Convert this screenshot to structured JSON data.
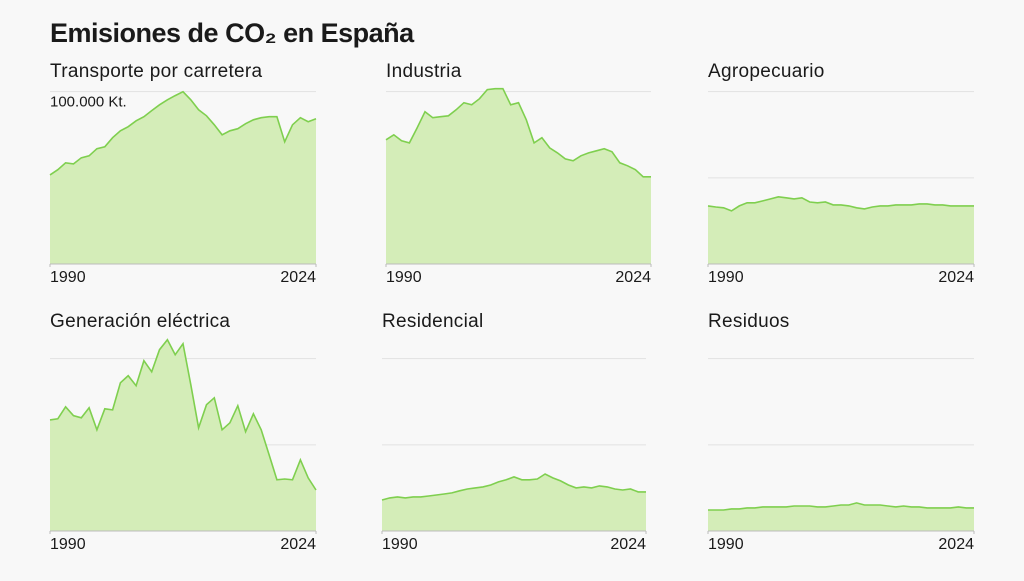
{
  "title": "Emisiones de CO₂ en España",
  "chart_data": [
    {
      "type": "area",
      "title": "Transporte por carretera",
      "color": "#7fcf4f",
      "fill": "#d4edb8",
      "x": [
        1990,
        1991,
        1992,
        1993,
        1994,
        1995,
        1996,
        1997,
        1998,
        1999,
        2000,
        2001,
        2002,
        2003,
        2004,
        2005,
        2006,
        2007,
        2008,
        2009,
        2010,
        2011,
        2012,
        2013,
        2014,
        2015,
        2016,
        2017,
        2018,
        2019,
        2020,
        2021,
        2022,
        2023,
        2024
      ],
      "values": [
        51700,
        54700,
        58700,
        58100,
        61600,
        62800,
        66900,
        68000,
        73300,
        77300,
        79700,
        83100,
        85500,
        89000,
        92400,
        95300,
        97700,
        100000,
        95300,
        89500,
        86000,
        80800,
        75000,
        77300,
        78500,
        81400,
        83700,
        84900,
        85500,
        85500,
        70900,
        80800,
        84900,
        82600,
        84300
      ],
      "xlim": [
        1990,
        2024
      ],
      "xticks": [
        1990,
        2024
      ],
      "ylim": [
        0,
        112000
      ],
      "ygrid": [
        50000,
        100000
      ],
      "yticks": [
        {
          "value": 100000,
          "label": "100.000 Kt."
        }
      ]
    },
    {
      "type": "area",
      "title": "Industria",
      "color": "#7fcf4f",
      "fill": "#d4edb8",
      "x": [
        1990,
        1991,
        1992,
        1993,
        1994,
        1995,
        1996,
        1997,
        1998,
        1999,
        2000,
        2001,
        2002,
        2003,
        2004,
        2005,
        2006,
        2007,
        2008,
        2009,
        2010,
        2011,
        2012,
        2013,
        2014,
        2015,
        2016,
        2017,
        2018,
        2019,
        2020,
        2021,
        2022,
        2023,
        2024
      ],
      "values": [
        72100,
        75000,
        71500,
        70300,
        79100,
        88400,
        84900,
        85500,
        86000,
        89500,
        93600,
        92400,
        95900,
        101200,
        101700,
        101700,
        92400,
        93600,
        83700,
        70300,
        73300,
        67400,
        64500,
        61000,
        59900,
        62800,
        64500,
        65700,
        66900,
        65100,
        58700,
        57000,
        54700,
        50600,
        50600
      ],
      "xlim": [
        1990,
        2024
      ],
      "xticks": [
        1990,
        2024
      ],
      "ylim": [
        0,
        112000
      ],
      "ygrid": [
        50000,
        100000
      ]
    },
    {
      "type": "area",
      "title": "Agropecuario",
      "color": "#7fcf4f",
      "fill": "#d4edb8",
      "x": [
        1990,
        1991,
        1992,
        1993,
        1994,
        1995,
        1996,
        1997,
        1998,
        1999,
        2000,
        2001,
        2002,
        2003,
        2004,
        2005,
        2006,
        2007,
        2008,
        2009,
        2010,
        2011,
        2012,
        2013,
        2014,
        2015,
        2016,
        2017,
        2018,
        2019,
        2020,
        2021,
        2022,
        2023,
        2024
      ],
      "values": [
        33700,
        33100,
        32600,
        30800,
        33700,
        35500,
        35500,
        36600,
        37800,
        39000,
        38400,
        37800,
        38400,
        36000,
        35500,
        36000,
        34300,
        34300,
        33700,
        32600,
        32000,
        33100,
        33700,
        33700,
        34300,
        34300,
        34300,
        34900,
        34900,
        34300,
        34300,
        33700,
        33700,
        33700,
        33700
      ],
      "xlim": [
        1990,
        2024
      ],
      "xticks": [
        1990,
        2024
      ],
      "ylim": [
        0,
        112000
      ],
      "ygrid": [
        50000,
        100000
      ]
    },
    {
      "type": "area",
      "title": "Generación eléctrica",
      "color": "#7fcf4f",
      "fill": "#d4edb8",
      "x": [
        1990,
        1991,
        1992,
        1993,
        1994,
        1995,
        1996,
        1997,
        1998,
        1999,
        2000,
        2001,
        2002,
        2003,
        2004,
        2005,
        2006,
        2007,
        2008,
        2009,
        2010,
        2011,
        2012,
        2013,
        2014,
        2015,
        2016,
        2017,
        2018,
        2019,
        2020,
        2021,
        2022,
        2023,
        2024
      ],
      "values": [
        64500,
        65100,
        72100,
        66900,
        65700,
        71500,
        58700,
        70900,
        70300,
        86000,
        90100,
        84300,
        98800,
        92400,
        105200,
        111000,
        102300,
        108700,
        84900,
        59900,
        73300,
        77300,
        58700,
        62800,
        72700,
        57600,
        68000,
        58700,
        44200,
        29700,
        30200,
        29700,
        41300,
        30800,
        23800
      ],
      "xlim": [
        1990,
        2024
      ],
      "xticks": [
        1990,
        2024
      ],
      "ylim": [
        0,
        112000
      ],
      "ygrid": [
        50000,
        100000
      ]
    },
    {
      "type": "area",
      "title": "Residencial",
      "color": "#7fcf4f",
      "fill": "#d4edb8",
      "x": [
        1990,
        1991,
        1992,
        1993,
        1994,
        1995,
        1996,
        1997,
        1998,
        1999,
        2000,
        2001,
        2002,
        2003,
        2004,
        2005,
        2006,
        2007,
        2008,
        2009,
        2010,
        2011,
        2012,
        2013,
        2014,
        2015,
        2016,
        2017,
        2018,
        2019,
        2020,
        2021,
        2022,
        2023,
        2024
      ],
      "values": [
        18000,
        19200,
        19800,
        19200,
        19800,
        19800,
        20300,
        20900,
        21500,
        22100,
        23300,
        24400,
        25000,
        25600,
        26700,
        28500,
        29700,
        31400,
        29700,
        29700,
        30200,
        33100,
        30800,
        29100,
        26700,
        25000,
        25600,
        25000,
        26200,
        25600,
        24400,
        23800,
        24400,
        22700,
        22700
      ],
      "xlim": [
        1990,
        2024
      ],
      "xticks": [
        1990,
        2024
      ],
      "ylim": [
        0,
        112000
      ],
      "ygrid": [
        50000,
        100000
      ]
    },
    {
      "type": "area",
      "title": "Residuos",
      "color": "#7fcf4f",
      "fill": "#d4edb8",
      "x": [
        1990,
        1991,
        1992,
        1993,
        1994,
        1995,
        1996,
        1997,
        1998,
        1999,
        2000,
        2001,
        2002,
        2003,
        2004,
        2005,
        2006,
        2007,
        2008,
        2009,
        2010,
        2011,
        2012,
        2013,
        2014,
        2015,
        2016,
        2017,
        2018,
        2019,
        2020,
        2021,
        2022,
        2023,
        2024
      ],
      "values": [
        12200,
        12200,
        12200,
        12800,
        12800,
        13400,
        13400,
        14000,
        14000,
        14000,
        14000,
        14500,
        14500,
        14500,
        14000,
        14000,
        14500,
        15100,
        15100,
        16300,
        15100,
        15100,
        15100,
        14500,
        14000,
        14500,
        14000,
        14000,
        13400,
        13400,
        13400,
        13400,
        14000,
        13400,
        13400
      ],
      "xlim": [
        1990,
        2024
      ],
      "xticks": [
        1990,
        2024
      ],
      "ylim": [
        0,
        112000
      ],
      "ygrid": [
        50000,
        100000
      ]
    }
  ]
}
